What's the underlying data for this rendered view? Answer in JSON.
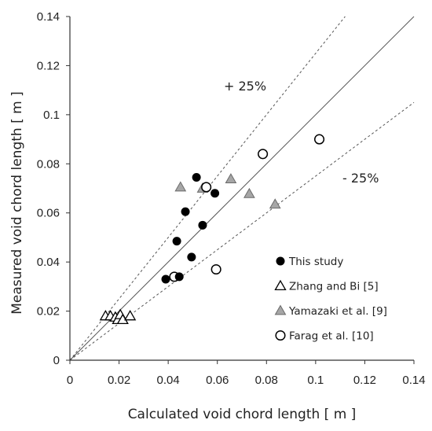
{
  "chart_data": {
    "type": "scatter",
    "xlabel": "Calculated void chord length [ m ]",
    "ylabel": "Measured void chord length [ m ]",
    "xlim": [
      0,
      0.14
    ],
    "ylim": [
      0,
      0.14
    ],
    "xticks": [
      "0",
      "0.02",
      "0.04",
      "0.06",
      "0.08",
      "0.1",
      "0.12",
      "0.14"
    ],
    "yticks": [
      "0",
      "0.02",
      "0.04",
      "0.06",
      "0.08",
      "0.1",
      "0.12",
      "0.14"
    ],
    "grid": false,
    "legend_position": "bottom-right",
    "reference_lines": [
      {
        "label": "",
        "slope": 1.0,
        "style": "solid"
      },
      {
        "label": "+ 25%",
        "slope": 1.25,
        "style": "dashed"
      },
      {
        "label": "- 25%",
        "slope": 0.75,
        "style": "dashed"
      }
    ],
    "series": [
      {
        "name": "This study",
        "marker": "filled-circle",
        "color": "#000000",
        "points": [
          [
            0.039,
            0.033
          ],
          [
            0.0445,
            0.034
          ],
          [
            0.0435,
            0.0485
          ],
          [
            0.047,
            0.0605
          ],
          [
            0.0495,
            0.042
          ],
          [
            0.0515,
            0.0745
          ],
          [
            0.054,
            0.055
          ],
          [
            0.059,
            0.068
          ]
        ]
      },
      {
        "name": "Zhang and Bi [5]",
        "marker": "open-triangle",
        "color": "#000000",
        "points": [
          [
            0.0145,
            0.018
          ],
          [
            0.0165,
            0.018
          ],
          [
            0.0185,
            0.0175
          ],
          [
            0.0195,
            0.0165
          ],
          [
            0.0205,
            0.0185
          ],
          [
            0.0215,
            0.0165
          ],
          [
            0.0245,
            0.018
          ]
        ]
      },
      {
        "name": "Yamazaki et al. [9]",
        "marker": "gray-triangle",
        "color": "#a6a6a6",
        "points": [
          [
            0.045,
            0.0705
          ],
          [
            0.054,
            0.07
          ],
          [
            0.0655,
            0.0738
          ],
          [
            0.073,
            0.0678
          ],
          [
            0.0835,
            0.0635
          ]
        ]
      },
      {
        "name": "Farag et al. [10]",
        "marker": "open-circle",
        "color": "#000000",
        "points": [
          [
            0.0425,
            0.034
          ],
          [
            0.0555,
            0.0705
          ],
          [
            0.0595,
            0.037
          ],
          [
            0.0785,
            0.084
          ],
          [
            0.1015,
            0.09
          ]
        ]
      }
    ]
  }
}
